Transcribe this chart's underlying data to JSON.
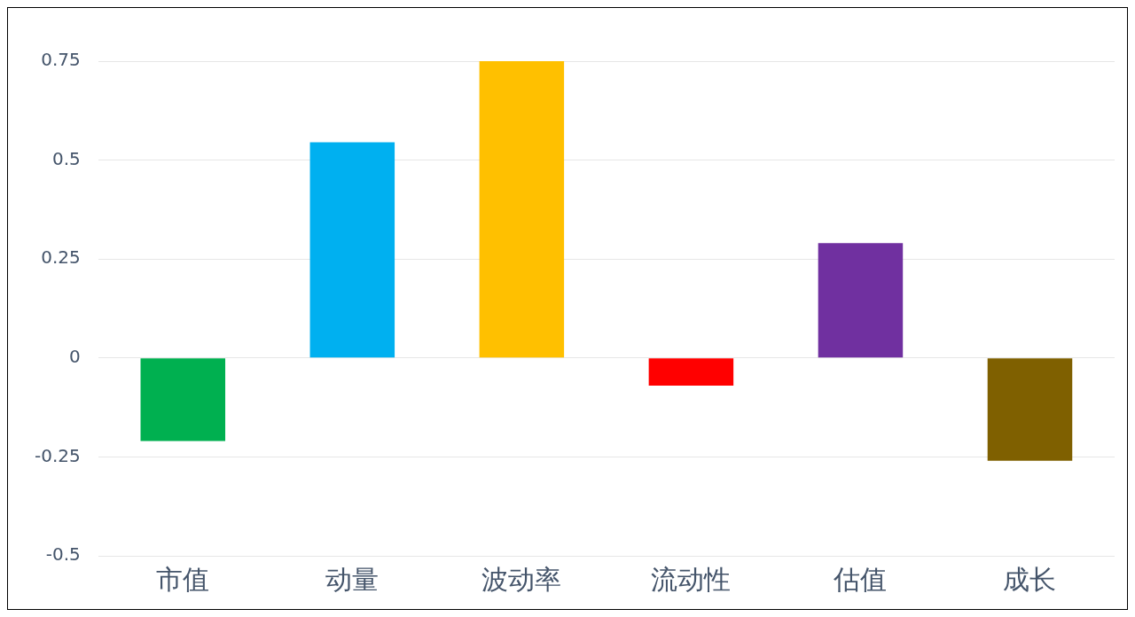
{
  "chart_data": {
    "type": "bar",
    "categories": [
      "市值",
      "动量",
      "波动率",
      "流动性",
      "估值",
      "成长"
    ],
    "values": [
      -0.21,
      0.545,
      0.75,
      -0.07,
      0.29,
      -0.26
    ],
    "colors": [
      "#00b050",
      "#00b0f0",
      "#ffc000",
      "#ff0000",
      "#7030a0",
      "#7f6000"
    ],
    "ylim": [
      -0.5,
      0.75
    ],
    "yticks": [
      -0.5,
      {
        "value": -0.25,
        "label": "-0.25"
      },
      0,
      {
        "value": 0.25,
        "label": "0.25"
      },
      {
        "value": 0.5,
        "label": "0.5"
      },
      {
        "value": 0.75,
        "label": "0.75"
      }
    ],
    "grid": "y",
    "legend": false
  }
}
